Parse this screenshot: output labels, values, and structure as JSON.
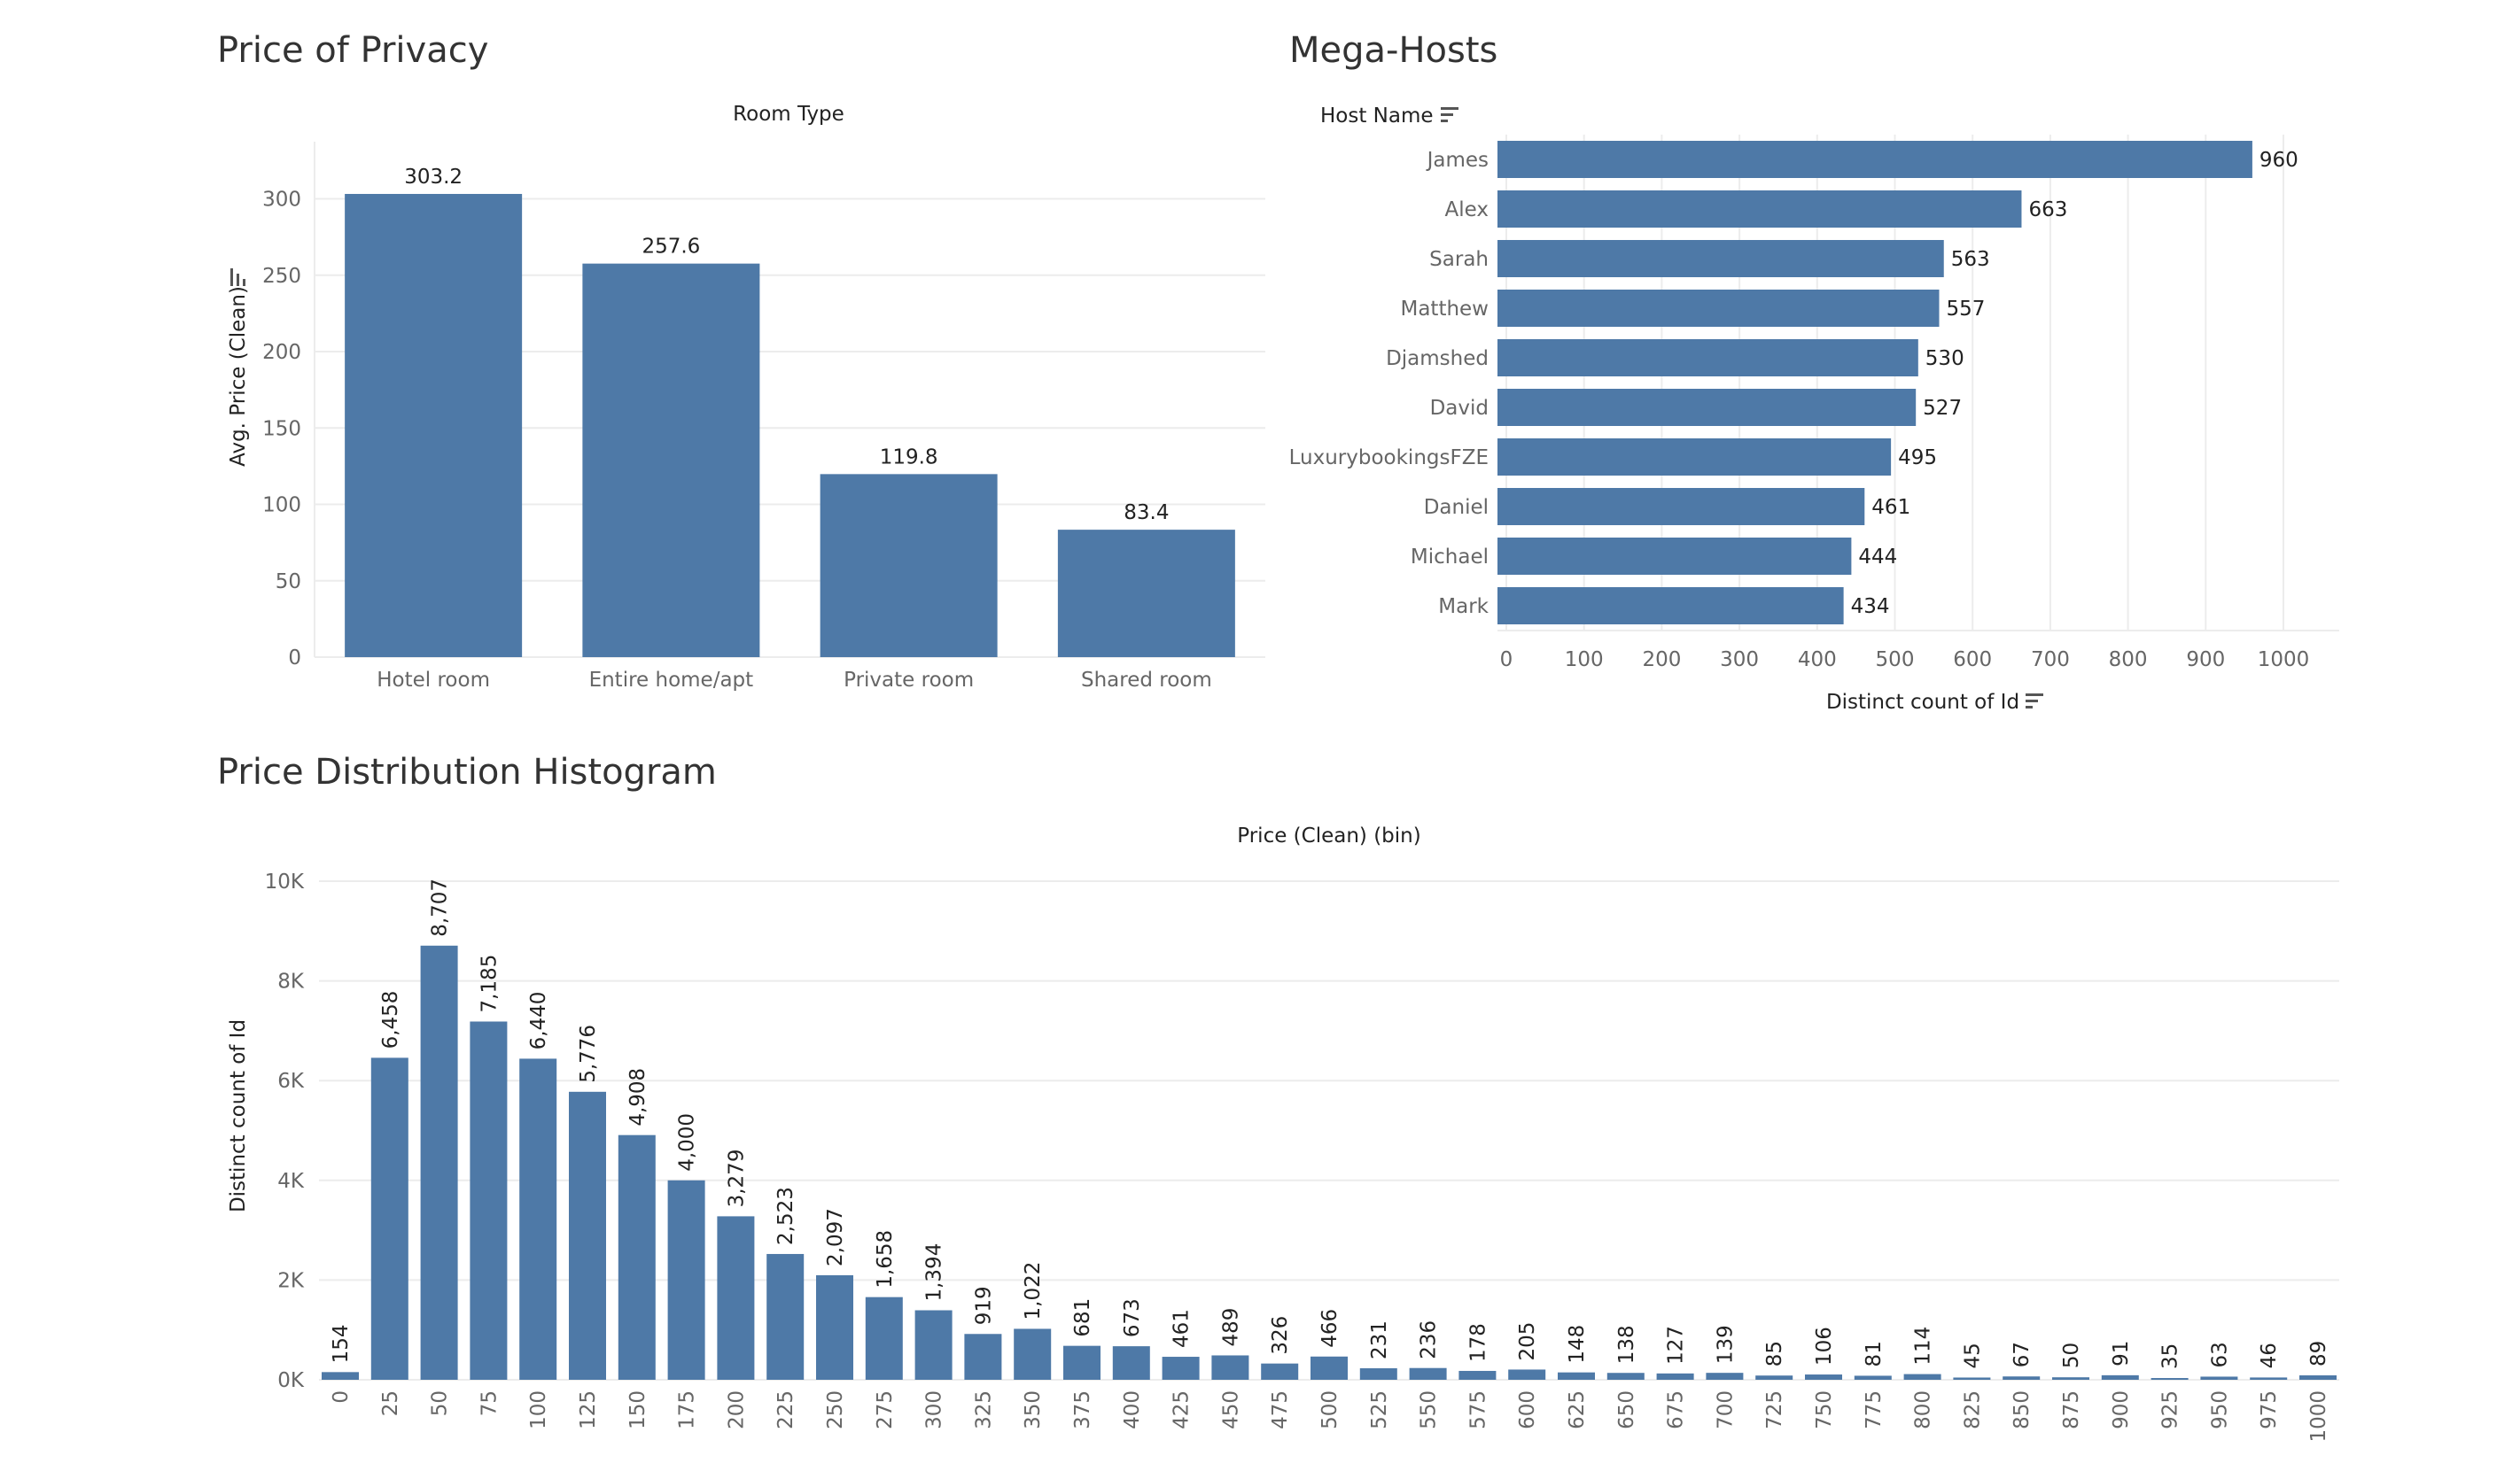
{
  "colors": {
    "bar": "#4e79a7",
    "grid": "#ececec",
    "axis_text": "#666666",
    "title_text": "#333333",
    "label_text": "#222222",
    "background": "#ffffff"
  },
  "icons": {
    "sort": "sort-descending-icon"
  },
  "chart_data": [
    {
      "type": "bar",
      "title": "Price of Privacy",
      "header": "Room Type",
      "ylabel": "Avg. Price (Clean)",
      "categories": [
        "Hotel room",
        "Entire home/apt",
        "Private room",
        "Shared room"
      ],
      "values": [
        303.2,
        257.6,
        119.8,
        83.4
      ],
      "data_labels": [
        "303.2",
        "257.6",
        "119.8",
        "83.4"
      ],
      "yticks": [
        0,
        50,
        100,
        150,
        200,
        250,
        300
      ],
      "ylim": [
        0,
        320
      ],
      "grid": true
    },
    {
      "type": "bar",
      "orientation": "horizontal",
      "title": "Mega-Hosts",
      "row_header": "Host Name",
      "xlabel": "Distinct count of Id",
      "categories": [
        "James",
        "Alex",
        "Sarah",
        "Matthew",
        "Djamshed",
        "David",
        "LuxurybookingsFZE",
        "Daniel",
        "Michael",
        "Mark"
      ],
      "values": [
        960,
        663,
        563,
        557,
        530,
        527,
        495,
        461,
        444,
        434
      ],
      "xticks": [
        0,
        100,
        200,
        300,
        400,
        500,
        600,
        700,
        800,
        900,
        1000
      ],
      "xlim": [
        0,
        1050
      ],
      "grid": true
    },
    {
      "type": "bar",
      "title": "Price Distribution Histogram",
      "header": "Price (Clean) (bin)",
      "ylabel": "Distinct count of Id",
      "categories": [
        "0",
        "25",
        "50",
        "75",
        "100",
        "125",
        "150",
        "175",
        "200",
        "225",
        "250",
        "275",
        "300",
        "325",
        "350",
        "375",
        "400",
        "425",
        "450",
        "475",
        "500",
        "525",
        "550",
        "575",
        "600",
        "625",
        "650",
        "675",
        "700",
        "725",
        "750",
        "775",
        "800",
        "825",
        "850",
        "875",
        "900",
        "925",
        "950",
        "975",
        "1000"
      ],
      "values": [
        154,
        6458,
        8707,
        7185,
        6440,
        5776,
        4908,
        4000,
        3279,
        2523,
        2097,
        1658,
        1394,
        919,
        1022,
        681,
        673,
        461,
        489,
        326,
        466,
        231,
        236,
        178,
        205,
        148,
        138,
        127,
        139,
        85,
        106,
        81,
        114,
        45,
        67,
        50,
        91,
        35,
        63,
        46,
        89
      ],
      "data_labels": [
        "154",
        "6,458",
        "8,707",
        "7,185",
        "6,440",
        "5,776",
        "4,908",
        "4,000",
        "3,279",
        "2,523",
        "2,097",
        "1,658",
        "1,394",
        "919",
        "1,022",
        "681",
        "673",
        "461",
        "489",
        "326",
        "466",
        "231",
        "236",
        "178",
        "205",
        "148",
        "138",
        "127",
        "139",
        "85",
        "106",
        "81",
        "114",
        "45",
        "67",
        "50",
        "91",
        "35",
        "63",
        "46",
        "89"
      ],
      "yticks": [
        0,
        2000,
        4000,
        6000,
        8000,
        10000
      ],
      "ytick_labels": [
        "0K",
        "2K",
        "4K",
        "6K",
        "8K",
        "10K"
      ],
      "ylim": [
        0,
        10000
      ],
      "grid": true
    }
  ]
}
